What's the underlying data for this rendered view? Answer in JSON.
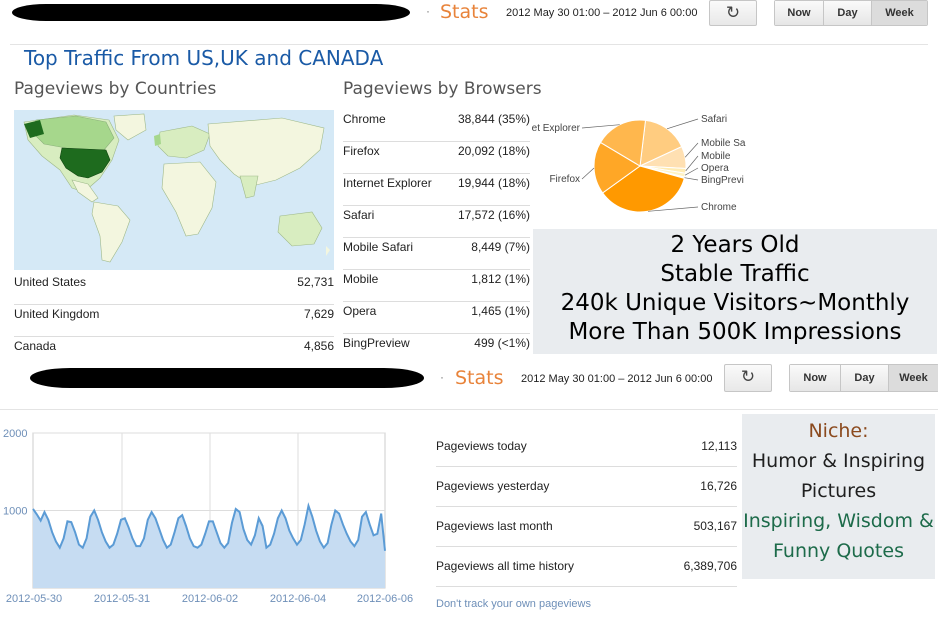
{
  "top_bar": {
    "stats_label": "Stats",
    "separator": "·",
    "date_range": "2012 May 30 01:00 – 2012 Jun 6 00:00",
    "refresh_glyph": "↻",
    "periods": [
      "Now",
      "Day",
      "Week"
    ],
    "active_period": "Week"
  },
  "headline": "Top Traffic From US,UK and CANADA",
  "countries": {
    "title": "Pageviews by Countries",
    "rows": [
      {
        "name": "United States",
        "value": "52,731"
      },
      {
        "name": "United Kingdom",
        "value": "7,629"
      },
      {
        "name": "Canada",
        "value": "4,856"
      }
    ]
  },
  "browsers": {
    "title": "Pageviews by Browsers",
    "rows": [
      {
        "name": "Chrome",
        "value": "38,844 (35%)"
      },
      {
        "name": "Firefox",
        "value": "20,092 (18%)"
      },
      {
        "name": "Internet Explorer",
        "value": "19,944 (18%)"
      },
      {
        "name": "Safari",
        "value": "17,572 (16%)"
      },
      {
        "name": "Mobile Safari",
        "value": "8,449 (7%)"
      },
      {
        "name": "Mobile",
        "value": "1,812 (1%)"
      },
      {
        "name": "Opera",
        "value": "1,465 (1%)"
      },
      {
        "name": "BingPreview",
        "value": "499 (<1%)"
      }
    ]
  },
  "pie_labels": [
    "Safari",
    "Mobile Sa",
    "Mobile",
    "Opera",
    "BingPrevi",
    "Chrome",
    "Firefox",
    "et Explorer"
  ],
  "promo_overlay": {
    "lines": [
      "2 Years Old",
      "Stable Traffic",
      "240k Unique Visitors~Monthly",
      "More Than 500K Impressions"
    ]
  },
  "bottom_bar": {
    "stats_label": "Stats",
    "separator": "·",
    "date_range": "2012 May 30 01:00 – 2012 Jun 6 00:00",
    "refresh_glyph": "↻",
    "periods": [
      "Now",
      "Day",
      "Week"
    ],
    "active_period": "Week"
  },
  "pageviews": {
    "rows": [
      {
        "label": "Pageviews today",
        "value": "12,113"
      },
      {
        "label": "Pageviews yesterday",
        "value": "16,726"
      },
      {
        "label": "Pageviews last month",
        "value": "503,167"
      },
      {
        "label": "Pageviews all time history",
        "value": "6,389,706"
      }
    ],
    "link": "Don't track your own pageviews"
  },
  "niche": {
    "lines": [
      {
        "text": "Niche:",
        "color": "#8b4a1e"
      },
      {
        "text": "Humor & Inspiring",
        "color": "#1f1f1f"
      },
      {
        "text": "Pictures",
        "color": "#1f1f1f"
      },
      {
        "text": "Inspiring, Wisdom &",
        "color": "#1d6b4a"
      },
      {
        "text": "Funny Quotes",
        "color": "#1d6b4a"
      }
    ]
  },
  "colors": {
    "accent": "#e8833a",
    "title_blue": "#1a5aa6",
    "map_us": "#1e6b1e",
    "map_land": "#f3f6df",
    "line": "#5b9bd5",
    "area": "#c6dcf2"
  },
  "chart_data": [
    {
      "type": "pie",
      "title": "",
      "labels": [
        "Chrome",
        "Firefox",
        "Internet Explorer",
        "Safari",
        "Mobile Safari",
        "Mobile",
        "Opera",
        "BingPreview"
      ],
      "values": [
        38844,
        20092,
        19944,
        17572,
        8449,
        1812,
        1465,
        499
      ],
      "colors": [
        "#ff9900",
        "#ffa726",
        "#ffb74d",
        "#ffcc80",
        "#ffe0b2",
        "#ffecb3",
        "#fff3c4",
        "#fff8e1"
      ],
      "legend": "labels-on-slices"
    },
    {
      "type": "area",
      "title": "",
      "xlabel": "",
      "ylabel": "",
      "ylim": [
        0,
        2000
      ],
      "yticks": [
        "2000",
        "1000"
      ],
      "x_tick_labels": [
        "2012-05-30",
        "2012-05-31",
        "2012-06-02",
        "2012-06-04",
        "2012-06-06"
      ],
      "grid": true,
      "series": [
        {
          "values": [
            1020,
            950,
            870,
            980,
            880,
            720,
            600,
            520,
            640,
            860,
            850,
            720,
            560,
            520,
            640,
            920,
            1000,
            880,
            720,
            600,
            520,
            560,
            700,
            880,
            900,
            780,
            640,
            540,
            540,
            640,
            880,
            980,
            900,
            760,
            620,
            520,
            560,
            720,
            900,
            940,
            800,
            640,
            540,
            520,
            560,
            700,
            860,
            860,
            720,
            580,
            520,
            580,
            840,
            1020,
            980,
            760,
            620,
            560,
            680,
            900,
            800,
            520,
            560,
            700,
            900,
            1000,
            900,
            740,
            640,
            560,
            620,
            820,
            1060,
            920,
            740,
            600,
            520,
            580,
            820,
            1000,
            960,
            820,
            700,
            600,
            540,
            620,
            920,
            980,
            820,
            680,
            700,
            960,
            480
          ]
        }
      ]
    }
  ]
}
